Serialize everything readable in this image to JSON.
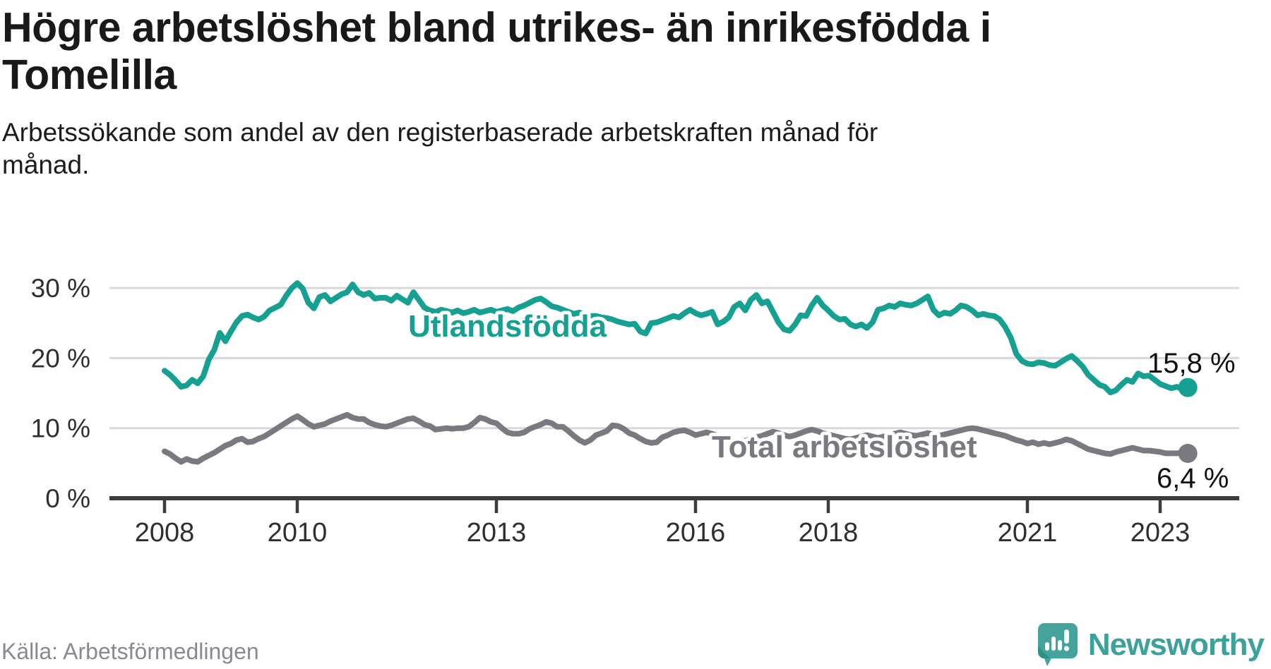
{
  "title": {
    "lines": [
      "Högre arbetslöshet bland utrikes- än inrikesfödda i",
      "Tomelilla"
    ]
  },
  "subtitle": {
    "lines": [
      "Arbetssökande som andel av den registerbaserade arbetskraften månad för",
      "månad."
    ]
  },
  "footer": {
    "source": "Källa: Arbetsförmedlingen",
    "brand": "Newsworthy"
  },
  "colors": {
    "foreign_born_line": "#16a092",
    "total_line": "#7b7880",
    "grid": "#d8d8d8",
    "axis": "#3c3c3c",
    "tick_text": "#2f2f2f",
    "end_label_text": "#111111",
    "brand_teal": "#3aa29a",
    "logo_bubble": "#44a39b",
    "logo_fold": "#2f8c85"
  },
  "chart_data": {
    "type": "line",
    "title": "Högre arbetslöshet bland utrikes- än inrikesfödda i Tomelilla",
    "subtitle": "Arbetssökande som andel av den registerbaserade arbetskraften månad för månad.",
    "source": "Källa: Arbetsförmedlingen",
    "unit": "%",
    "x_start": {
      "year": 2008,
      "month": 1
    },
    "x_end": {
      "year": 2023,
      "month": 6
    },
    "x_ticks": [
      2008,
      2010,
      2013,
      2016,
      2018,
      2021,
      2023
    ],
    "y_ticks": [
      0,
      10,
      20,
      30
    ],
    "y_tick_suffix": " %",
    "ylim": [
      0,
      33
    ],
    "grid": "horizontal",
    "legend_position": "inline-labels",
    "series": [
      {
        "name": "Utlandsfödda",
        "end_label": "15,8 %",
        "end_value": 15.8,
        "color": "#16a092",
        "values": [
          18.2,
          17.6,
          16.8,
          15.9,
          16.1,
          16.9,
          16.4,
          17.4,
          19.8,
          21.2,
          23.6,
          22.4,
          23.8,
          25.1,
          26.0,
          26.2,
          25.8,
          25.5,
          25.9,
          26.8,
          27.2,
          27.6,
          28.9,
          30.0,
          30.7,
          29.9,
          27.9,
          27.1,
          28.7,
          29.0,
          28.1,
          28.6,
          29.1,
          29.4,
          30.5,
          29.4,
          29.0,
          29.3,
          28.5,
          28.6,
          28.6,
          28.2,
          28.9,
          28.4,
          27.9,
          29.4,
          28.3,
          27.2,
          26.8,
          26.6,
          26.9,
          26.7,
          26.5,
          26.8,
          26.4,
          26.6,
          26.9,
          26.5,
          26.7,
          26.9,
          26.6,
          26.8,
          27.0,
          26.7,
          27.2,
          27.5,
          27.9,
          28.3,
          28.5,
          28.0,
          27.4,
          27.2,
          26.9,
          26.6,
          26.3,
          26.5,
          26.2,
          26.0,
          26.0,
          25.8,
          25.7,
          25.5,
          25.2,
          25.0,
          24.8,
          24.9,
          23.8,
          23.5,
          25.0,
          25.1,
          25.4,
          25.7,
          26.0,
          25.8,
          26.4,
          26.9,
          26.4,
          26.1,
          26.3,
          26.6,
          24.8,
          25.2,
          25.8,
          27.3,
          27.8,
          26.8,
          28.3,
          29.0,
          27.8,
          28.1,
          26.6,
          25.1,
          24.1,
          23.9,
          24.8,
          26.1,
          26.0,
          27.5,
          28.6,
          27.5,
          26.8,
          26.0,
          25.5,
          25.6,
          24.8,
          24.5,
          24.8,
          24.3,
          25.1,
          26.9,
          27.1,
          27.5,
          27.3,
          27.8,
          27.6,
          27.5,
          27.8,
          28.3,
          28.8,
          26.9,
          26.1,
          26.5,
          26.3,
          26.8,
          27.5,
          27.3,
          26.8,
          26.1,
          26.3,
          26.1,
          26.0,
          25.5,
          24.4,
          22.9,
          20.6,
          19.6,
          19.2,
          19.1,
          19.4,
          19.3,
          19.0,
          18.9,
          19.4,
          19.9,
          20.3,
          19.6,
          18.8,
          17.6,
          16.9,
          16.2,
          15.9,
          15.1,
          15.4,
          16.2,
          16.9,
          16.6,
          17.8,
          17.4,
          17.5,
          16.9,
          16.3,
          16.0,
          15.7,
          15.9,
          15.6,
          15.8
        ]
      },
      {
        "name": "Total arbetslöshet",
        "end_label": "6,4 %",
        "end_value": 6.4,
        "color": "#7b7880",
        "values": [
          6.7,
          6.3,
          5.7,
          5.2,
          5.6,
          5.3,
          5.2,
          5.7,
          6.1,
          6.5,
          7.0,
          7.5,
          7.8,
          8.3,
          8.5,
          8.0,
          8.1,
          8.5,
          8.8,
          9.3,
          9.8,
          10.3,
          10.8,
          11.3,
          11.7,
          11.2,
          10.6,
          10.2,
          10.4,
          10.6,
          11.0,
          11.3,
          11.6,
          11.9,
          11.5,
          11.3,
          11.3,
          10.8,
          10.5,
          10.3,
          10.2,
          10.4,
          10.7,
          11.0,
          11.3,
          11.4,
          11.0,
          10.5,
          10.3,
          9.8,
          9.9,
          10.0,
          9.9,
          10.0,
          10.0,
          10.2,
          10.8,
          11.5,
          11.3,
          10.9,
          10.7,
          10.0,
          9.4,
          9.2,
          9.2,
          9.4,
          9.9,
          10.2,
          10.5,
          10.9,
          10.7,
          10.2,
          10.2,
          9.6,
          8.9,
          8.3,
          7.9,
          8.3,
          9.0,
          9.3,
          9.6,
          10.4,
          10.3,
          9.9,
          9.3,
          9.0,
          8.5,
          8.1,
          7.9,
          8.0,
          8.7,
          9.0,
          9.4,
          9.6,
          9.7,
          9.4,
          9.0,
          9.2,
          9.4,
          9.2,
          8.9,
          8.6,
          8.3,
          8.1,
          8.0,
          8.2,
          8.5,
          8.7,
          8.9,
          9.2,
          9.5,
          9.3,
          9.0,
          8.8,
          9.0,
          9.3,
          9.6,
          9.8,
          9.6,
          9.3,
          9.1,
          8.9,
          8.7,
          8.5,
          8.4,
          8.6,
          8.8,
          9.0,
          8.8,
          8.6,
          8.8,
          9.0,
          9.2,
          9.4,
          9.2,
          9.0,
          8.9,
          9.1,
          9.3,
          9.1,
          8.9,
          9.1,
          9.3,
          9.5,
          9.7,
          9.9,
          10.0,
          9.9,
          9.7,
          9.5,
          9.3,
          9.1,
          8.9,
          8.6,
          8.3,
          8.1,
          7.8,
          8.0,
          7.7,
          7.9,
          7.7,
          7.9,
          8.1,
          8.4,
          8.2,
          7.8,
          7.4,
          7.0,
          6.8,
          6.6,
          6.4,
          6.3,
          6.6,
          6.8,
          7.0,
          7.2,
          7.0,
          6.8,
          6.8,
          6.7,
          6.6,
          6.4,
          6.4,
          6.4,
          6.5,
          6.4
        ]
      }
    ]
  }
}
